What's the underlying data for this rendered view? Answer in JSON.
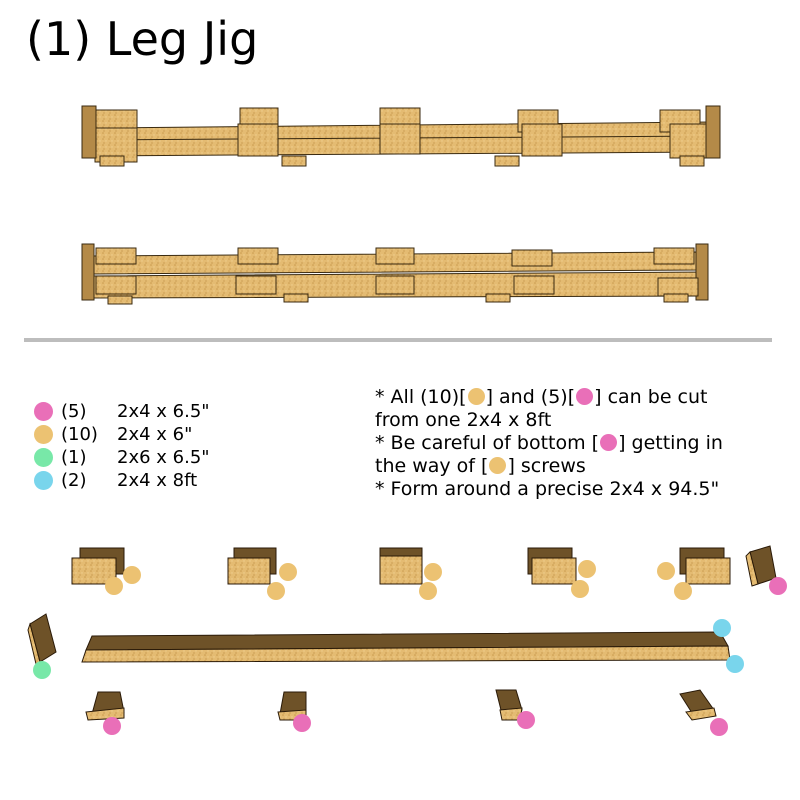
{
  "title": "(1) Leg Jig",
  "colors": {
    "pink": "#e96fb8",
    "tan": "#ecc272",
    "green": "#78e8a8",
    "blue": "#79d5ec",
    "wood": "#e2b86e",
    "wood_dark": "#7a5a2a",
    "divider": "#bdbdbd"
  },
  "legend": [
    {
      "color": "pink",
      "qty": "(5)",
      "size": "2x4 x 6.5\""
    },
    {
      "color": "tan",
      "qty": "(10)",
      "size": "2x4 x 6\""
    },
    {
      "color": "green",
      "qty": "(1)",
      "size": "2x6 x 6.5\""
    },
    {
      "color": "blue",
      "qty": "(2)",
      "size": "2x4 x 8ft"
    }
  ],
  "notes": {
    "line1_a": "* All (10)[",
    "line1_b": "] and (5)[",
    "line1_c": "] can be cut",
    "line2": "from one 2x4 x 8ft",
    "line3_a": "* Be careful of bottom [",
    "line3_b": "]  getting in",
    "line4_a": "the way of [",
    "line4_b": "] screws",
    "line5": "* Form around a precise 2x4 x 94.5\""
  }
}
